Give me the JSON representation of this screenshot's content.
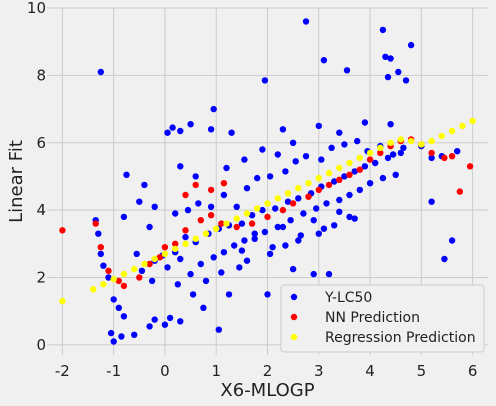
{
  "chart_data": {
    "type": "scatter",
    "title": "",
    "xlabel": "X6-MLOGP",
    "ylabel": "Linear Fit",
    "xlim": [
      -2.3,
      6.3
    ],
    "ylim": [
      -0.3,
      10
    ],
    "xticks": [
      -2,
      -1,
      0,
      1,
      2,
      3,
      4,
      5,
      6
    ],
    "yticks": [
      0,
      2,
      4,
      6,
      8,
      10
    ],
    "grid": true,
    "legend_position": "lower-right",
    "colors": {
      "background": "#f0f0f0",
      "grid": "#cbcbcb",
      "text": "#222222"
    },
    "series": [
      {
        "name": "Y-LC50",
        "color": "#0000ff",
        "points": [
          [
            -1.25,
            8.1
          ],
          [
            2.75,
            9.6
          ],
          [
            4.25,
            9.35
          ],
          [
            4.8,
            8.9
          ],
          [
            3.1,
            8.45
          ],
          [
            4.3,
            8.55
          ],
          [
            4.4,
            8.5
          ],
          [
            3.55,
            8.15
          ],
          [
            1.95,
            7.85
          ],
          [
            4.55,
            8.1
          ],
          [
            4.35,
            7.95
          ],
          [
            4.7,
            7.85
          ],
          [
            -1.35,
            3.7
          ],
          [
            -1.3,
            3.3
          ],
          [
            -1.25,
            2.7
          ],
          [
            -1.2,
            2.35
          ],
          [
            -1.1,
            2.0
          ],
          [
            -1.0,
            1.35
          ],
          [
            -0.9,
            1.1
          ],
          [
            -0.8,
            0.85
          ],
          [
            -1.05,
            0.35
          ],
          [
            -1.0,
            0.1
          ],
          [
            -0.85,
            0.25
          ],
          [
            -0.6,
            0.3
          ],
          [
            -0.3,
            0.55
          ],
          [
            -0.2,
            0.75
          ],
          [
            0.0,
            0.6
          ],
          [
            0.1,
            0.8
          ],
          [
            0.3,
            0.7
          ],
          [
            -0.75,
            5.05
          ],
          [
            -0.8,
            3.8
          ],
          [
            -0.5,
            4.25
          ],
          [
            -0.4,
            4.75
          ],
          [
            -0.3,
            3.5
          ],
          [
            -0.2,
            4.1
          ],
          [
            0.05,
            6.3
          ],
          [
            0.15,
            6.45
          ],
          [
            0.3,
            6.35
          ],
          [
            0.5,
            6.55
          ],
          [
            0.9,
            6.4
          ],
          [
            0.95,
            7.0
          ],
          [
            1.3,
            6.3
          ],
          [
            2.3,
            6.4
          ],
          [
            3.0,
            6.5
          ],
          [
            3.4,
            6.3
          ],
          [
            3.9,
            6.6
          ],
          [
            4.4,
            6.55
          ],
          [
            5.0,
            5.9
          ],
          [
            5.2,
            5.55
          ],
          [
            5.4,
            5.6
          ],
          [
            5.7,
            5.75
          ],
          [
            5.2,
            4.25
          ],
          [
            5.45,
            2.55
          ],
          [
            5.6,
            3.1
          ],
          [
            1.05,
            0.45
          ],
          [
            1.25,
            1.5
          ],
          [
            0.75,
            1.1
          ],
          [
            0.55,
            1.5
          ],
          [
            1.45,
            2.3
          ],
          [
            2.0,
            1.5
          ],
          [
            2.9,
            2.1
          ],
          [
            3.2,
            2.1
          ],
          [
            2.5,
            2.25
          ],
          [
            1.5,
            2.8
          ],
          [
            1.75,
            3.3
          ],
          [
            2.1,
            2.9
          ],
          [
            2.3,
            3.5
          ],
          [
            2.6,
            3.1
          ],
          [
            2.9,
            3.7
          ],
          [
            3.1,
            3.45
          ],
          [
            3.4,
            3.95
          ],
          [
            3.6,
            3.8
          ],
          [
            0.2,
            3.9
          ],
          [
            0.45,
            4.0
          ],
          [
            0.65,
            4.2
          ],
          [
            0.9,
            4.1
          ],
          [
            1.15,
            4.45
          ],
          [
            1.4,
            4.1
          ],
          [
            1.6,
            4.65
          ],
          [
            1.8,
            4.95
          ],
          [
            2.05,
            5.0
          ],
          [
            2.35,
            5.15
          ],
          [
            2.55,
            5.45
          ],
          [
            2.75,
            5.6
          ],
          [
            3.05,
            5.5
          ],
          [
            3.25,
            5.85
          ],
          [
            3.5,
            5.95
          ],
          [
            3.75,
            6.05
          ],
          [
            3.95,
            5.75
          ],
          [
            4.2,
            5.9
          ],
          [
            4.45,
            5.65
          ],
          [
            4.65,
            5.85
          ],
          [
            -0.2,
            2.5
          ],
          [
            -0.05,
            2.65
          ],
          [
            0.2,
            2.75
          ],
          [
            0.4,
            3.2
          ],
          [
            0.6,
            3.05
          ],
          [
            0.85,
            3.3
          ],
          [
            1.05,
            3.45
          ],
          [
            1.25,
            3.55
          ],
          [
            1.5,
            3.6
          ],
          [
            1.7,
            3.85
          ],
          [
            1.9,
            4.0
          ],
          [
            2.15,
            4.05
          ],
          [
            2.4,
            4.25
          ],
          [
            2.6,
            4.35
          ],
          [
            2.85,
            4.5
          ],
          [
            3.05,
            4.7
          ],
          [
            3.3,
            4.85
          ],
          [
            3.5,
            5.0
          ],
          [
            3.7,
            5.15
          ],
          [
            3.9,
            5.3
          ],
          [
            4.1,
            5.4
          ],
          [
            4.35,
            5.55
          ],
          [
            4.6,
            5.7
          ],
          [
            0.5,
            2.1
          ],
          [
            0.7,
            2.4
          ],
          [
            0.95,
            2.6
          ],
          [
            1.15,
            2.75
          ],
          [
            1.35,
            2.95
          ],
          [
            1.55,
            3.1
          ],
          [
            1.75,
            3.15
          ],
          [
            1.95,
            3.35
          ],
          [
            2.2,
            3.5
          ],
          [
            2.45,
            3.7
          ],
          [
            2.7,
            3.9
          ],
          [
            2.95,
            4.05
          ],
          [
            3.15,
            4.2
          ],
          [
            3.4,
            4.3
          ],
          [
            3.6,
            4.45
          ],
          [
            3.8,
            4.6
          ],
          [
            4.0,
            4.8
          ],
          [
            4.25,
            4.95
          ],
          [
            4.5,
            5.05
          ],
          [
            0.25,
            1.8
          ],
          [
            0.8,
            1.9
          ],
          [
            1.1,
            2.15
          ],
          [
            1.6,
            2.5
          ],
          [
            2.05,
            2.7
          ],
          [
            2.35,
            2.95
          ],
          [
            2.65,
            3.25
          ],
          [
            3.0,
            3.3
          ],
          [
            3.3,
            3.55
          ],
          [
            3.7,
            3.75
          ],
          [
            1.2,
            5.25
          ],
          [
            1.55,
            5.5
          ],
          [
            1.9,
            5.8
          ],
          [
            2.2,
            5.65
          ],
          [
            2.5,
            6.0
          ],
          [
            0.6,
            5.0
          ],
          [
            0.3,
            5.3
          ],
          [
            -0.55,
            2.7
          ],
          [
            -0.45,
            2.2
          ],
          [
            -0.25,
            1.9
          ],
          [
            0.05,
            2.3
          ],
          [
            0.3,
            2.55
          ]
        ]
      },
      {
        "name": "NN Prediction",
        "color": "#ff0000",
        "points": [
          [
            -2.0,
            3.4
          ],
          [
            -1.35,
            3.6
          ],
          [
            -1.25,
            2.9
          ],
          [
            -1.1,
            2.2
          ],
          [
            -0.9,
            1.9
          ],
          [
            -0.8,
            1.75
          ],
          [
            -0.5,
            2.0
          ],
          [
            -0.3,
            2.4
          ],
          [
            -0.1,
            2.6
          ],
          [
            0.0,
            2.9
          ],
          [
            0.2,
            3.0
          ],
          [
            0.4,
            3.4
          ],
          [
            0.7,
            3.7
          ],
          [
            0.9,
            3.85
          ],
          [
            1.1,
            3.6
          ],
          [
            1.4,
            3.5
          ],
          [
            1.7,
            3.6
          ],
          [
            2.0,
            3.8
          ],
          [
            2.3,
            4.0
          ],
          [
            2.5,
            4.2
          ],
          [
            2.8,
            4.4
          ],
          [
            3.0,
            4.6
          ],
          [
            3.2,
            4.75
          ],
          [
            3.4,
            4.9
          ],
          [
            3.6,
            5.05
          ],
          [
            3.8,
            5.2
          ],
          [
            4.0,
            5.5
          ],
          [
            4.2,
            5.7
          ],
          [
            4.4,
            5.9
          ],
          [
            4.6,
            6.05
          ],
          [
            4.8,
            6.1
          ],
          [
            5.0,
            5.95
          ],
          [
            5.2,
            5.7
          ],
          [
            5.45,
            5.55
          ],
          [
            5.6,
            5.6
          ],
          [
            5.75,
            4.55
          ],
          [
            5.95,
            5.3
          ],
          [
            0.6,
            4.75
          ],
          [
            0.9,
            4.6
          ],
          [
            1.15,
            4.8
          ],
          [
            0.4,
            4.45
          ]
        ]
      },
      {
        "name": "Regression Prediction",
        "color": "#ffff00",
        "points": [
          [
            -2.0,
            1.3
          ],
          [
            -1.4,
            1.65
          ],
          [
            -1.2,
            1.8
          ],
          [
            -1.0,
            1.95
          ],
          [
            -0.8,
            2.1
          ],
          [
            -0.6,
            2.25
          ],
          [
            -0.4,
            2.4
          ],
          [
            -0.2,
            2.55
          ],
          [
            0.0,
            2.7
          ],
          [
            0.2,
            2.85
          ],
          [
            0.4,
            3.0
          ],
          [
            0.6,
            3.15
          ],
          [
            0.8,
            3.3
          ],
          [
            1.0,
            3.45
          ],
          [
            1.2,
            3.6
          ],
          [
            1.4,
            3.75
          ],
          [
            1.6,
            3.9
          ],
          [
            1.8,
            4.05
          ],
          [
            2.0,
            4.2
          ],
          [
            2.2,
            4.35
          ],
          [
            2.4,
            4.5
          ],
          [
            2.6,
            4.65
          ],
          [
            2.8,
            4.8
          ],
          [
            3.0,
            4.95
          ],
          [
            3.2,
            5.1
          ],
          [
            3.4,
            5.25
          ],
          [
            3.6,
            5.4
          ],
          [
            3.8,
            5.55
          ],
          [
            4.0,
            5.7
          ],
          [
            4.2,
            5.85
          ],
          [
            4.4,
            6.0
          ],
          [
            4.6,
            6.1
          ],
          [
            4.8,
            6.05
          ],
          [
            5.0,
            5.95
          ],
          [
            5.2,
            6.05
          ],
          [
            5.4,
            6.2
          ],
          [
            5.6,
            6.35
          ],
          [
            5.8,
            6.5
          ],
          [
            6.0,
            6.65
          ]
        ]
      }
    ]
  }
}
